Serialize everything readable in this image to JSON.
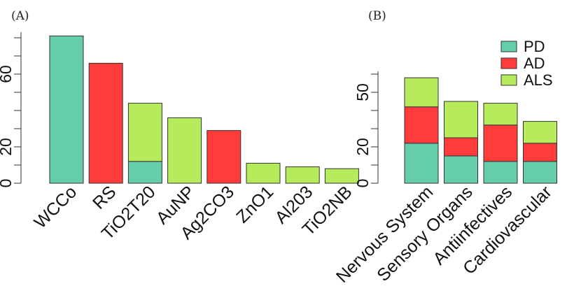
{
  "colors": {
    "PD": "#66CDAA",
    "AD": "#FF3B3B",
    "ALS": "#B6EB5C"
  },
  "chart_data": [
    {
      "panel_label": "(A)",
      "type": "bar",
      "stacked": true,
      "categories": [
        "WCCo",
        "RS",
        "TiO2T20",
        "AuNP",
        "Ag2CO3",
        "ZnO1",
        "Al203",
        "TiO2NB"
      ],
      "series": [
        {
          "name": "PD",
          "values": [
            81,
            0,
            12,
            0,
            0,
            0,
            0,
            0
          ]
        },
        {
          "name": "AD",
          "values": [
            0,
            66,
            0,
            0,
            29,
            0,
            0,
            0
          ]
        },
        {
          "name": "ALS",
          "values": [
            0,
            0,
            32,
            36,
            0,
            11,
            9,
            8
          ]
        }
      ],
      "yticks": [
        0,
        20,
        60
      ],
      "ylim": [
        0,
        84
      ],
      "legend": false
    },
    {
      "panel_label": "(B)",
      "type": "bar",
      "stacked": true,
      "categories": [
        "Nervous System",
        "Sensory Organs",
        "Antiinfectives",
        "Cardiovascular"
      ],
      "series": [
        {
          "name": "PD",
          "values": [
            22,
            15,
            12,
            12
          ]
        },
        {
          "name": "AD",
          "values": [
            20,
            10,
            20,
            10
          ]
        },
        {
          "name": "ALS",
          "values": [
            16,
            20,
            12,
            12
          ]
        }
      ],
      "yticks": [
        0,
        20,
        50
      ],
      "ylim": [
        0,
        60
      ],
      "legend": true,
      "legend_placement": "top-right"
    }
  ]
}
